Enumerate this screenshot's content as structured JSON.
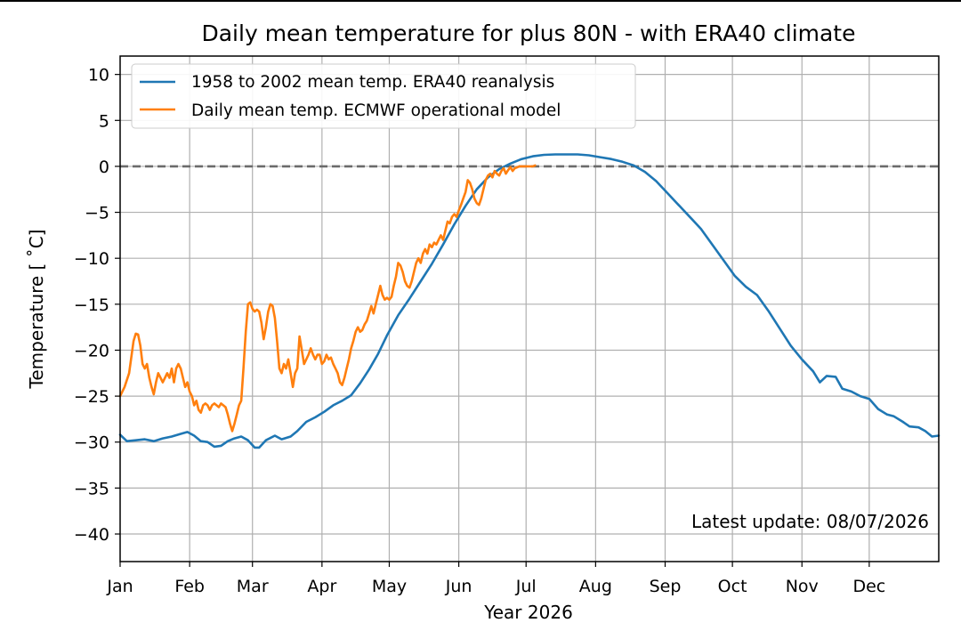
{
  "chart_data": {
    "type": "line",
    "title": "Daily mean temperature for plus 80N - with ERA40 climate",
    "xlabel": "Year 2026",
    "ylabel": "Temperature [$^\\circ$C]",
    "ylabel_display": "Temperature [ ˚C]",
    "x_tick_labels": [
      "Jan",
      "Feb",
      "Mar",
      "Apr",
      "May",
      "Jun",
      "Jul",
      "Aug",
      "Sep",
      "Oct",
      "Nov",
      "Dec"
    ],
    "x_ticks_day_of_year": [
      1,
      32,
      60,
      91,
      121,
      152,
      182,
      213,
      244,
      274,
      305,
      335
    ],
    "y_tick_labels": [
      "10",
      "5",
      "0",
      "−5",
      "−10",
      "−15",
      "−20",
      "−25",
      "−30",
      "−35",
      "−40"
    ],
    "y_ticks": [
      10,
      5,
      0,
      -5,
      -10,
      -15,
      -20,
      -25,
      -30,
      -35,
      -40
    ],
    "xlim": [
      1,
      366
    ],
    "ylim": [
      -43,
      12
    ],
    "grid": true,
    "legend_position": "upper-left",
    "reference_line": {
      "y": 0,
      "style": "dashed",
      "color": "#6b6b6b"
    },
    "annotation": "Latest update: 08/07/2026",
    "series": [
      {
        "name": "1958 to 2002 mean temp. ERA40 reanalysis",
        "color": "#1f77b4",
        "points": [
          [
            1,
            -29.2
          ],
          [
            4,
            -29.9
          ],
          [
            8,
            -29.8
          ],
          [
            12,
            -29.7
          ],
          [
            16,
            -29.9
          ],
          [
            20,
            -29.6
          ],
          [
            24,
            -29.4
          ],
          [
            28,
            -29.1
          ],
          [
            31,
            -28.9
          ],
          [
            34,
            -29.3
          ],
          [
            37,
            -29.9
          ],
          [
            40,
            -30.0
          ],
          [
            43,
            -30.5
          ],
          [
            46,
            -30.4
          ],
          [
            49,
            -29.9
          ],
          [
            52,
            -29.6
          ],
          [
            55,
            -29.4
          ],
          [
            58,
            -29.8
          ],
          [
            61,
            -30.6
          ],
          [
            63,
            -30.6
          ],
          [
            66,
            -29.8
          ],
          [
            70,
            -29.3
          ],
          [
            73,
            -29.7
          ],
          [
            77,
            -29.4
          ],
          [
            80,
            -28.8
          ],
          [
            84,
            -27.8
          ],
          [
            88,
            -27.3
          ],
          [
            92,
            -26.7
          ],
          [
            96,
            -26.0
          ],
          [
            100,
            -25.5
          ],
          [
            104,
            -24.9
          ],
          [
            108,
            -23.6
          ],
          [
            112,
            -22.1
          ],
          [
            116,
            -20.4
          ],
          [
            120,
            -18.4
          ],
          [
            125,
            -16.2
          ],
          [
            130,
            -14.4
          ],
          [
            135,
            -12.5
          ],
          [
            140,
            -10.6
          ],
          [
            145,
            -8.5
          ],
          [
            150,
            -6.3
          ],
          [
            155,
            -4.3
          ],
          [
            160,
            -2.5
          ],
          [
            165,
            -1.2
          ],
          [
            170,
            -0.3
          ],
          [
            175,
            0.3
          ],
          [
            180,
            0.8
          ],
          [
            185,
            1.1
          ],
          [
            190,
            1.25
          ],
          [
            195,
            1.3
          ],
          [
            200,
            1.3
          ],
          [
            205,
            1.3
          ],
          [
            210,
            1.2
          ],
          [
            215,
            1.0
          ],
          [
            220,
            0.8
          ],
          [
            225,
            0.5
          ],
          [
            230,
            0.1
          ],
          [
            235,
            -0.6
          ],
          [
            240,
            -1.6
          ],
          [
            245,
            -2.9
          ],
          [
            250,
            -4.2
          ],
          [
            255,
            -5.5
          ],
          [
            260,
            -6.8
          ],
          [
            265,
            -8.5
          ],
          [
            270,
            -10.2
          ],
          [
            275,
            -11.9
          ],
          [
            280,
            -13.1
          ],
          [
            285,
            -14.0
          ],
          [
            290,
            -15.7
          ],
          [
            295,
            -17.6
          ],
          [
            300,
            -19.5
          ],
          [
            305,
            -21.0
          ],
          [
            310,
            -22.3
          ],
          [
            313,
            -23.5
          ],
          [
            316,
            -22.8
          ],
          [
            320,
            -22.9
          ],
          [
            323,
            -24.2
          ],
          [
            327,
            -24.5
          ],
          [
            331,
            -25.0
          ],
          [
            335,
            -25.3
          ],
          [
            339,
            -26.4
          ],
          [
            343,
            -27.0
          ],
          [
            346,
            -27.2
          ],
          [
            350,
            -27.8
          ],
          [
            353,
            -28.3
          ],
          [
            357,
            -28.4
          ],
          [
            360,
            -28.8
          ],
          [
            363,
            -29.4
          ],
          [
            366,
            -29.3
          ]
        ]
      },
      {
        "name": "Daily mean temp. ECMWF operational model",
        "color": "#ff7f0e",
        "points": [
          [
            1,
            -25.0
          ],
          [
            3,
            -24.0
          ],
          [
            5,
            -22.5
          ],
          [
            7,
            -19.0
          ],
          [
            8,
            -18.2
          ],
          [
            9,
            -18.3
          ],
          [
            10,
            -19.5
          ],
          [
            11,
            -21.5
          ],
          [
            12,
            -22.0
          ],
          [
            13,
            -21.5
          ],
          [
            14,
            -23.0
          ],
          [
            15,
            -24.0
          ],
          [
            16,
            -24.8
          ],
          [
            17,
            -23.5
          ],
          [
            18,
            -22.5
          ],
          [
            19,
            -23.0
          ],
          [
            20,
            -23.5
          ],
          [
            21,
            -23.0
          ],
          [
            22,
            -22.5
          ],
          [
            23,
            -23.0
          ],
          [
            24,
            -22.0
          ],
          [
            25,
            -23.5
          ],
          [
            26,
            -22.0
          ],
          [
            27,
            -21.5
          ],
          [
            28,
            -22.0
          ],
          [
            29,
            -23.0
          ],
          [
            30,
            -24.0
          ],
          [
            31,
            -23.5
          ],
          [
            32,
            -24.5
          ],
          [
            33,
            -25.0
          ],
          [
            34,
            -26.0
          ],
          [
            35,
            -25.5
          ],
          [
            36,
            -26.5
          ],
          [
            37,
            -26.8
          ],
          [
            38,
            -26.0
          ],
          [
            39,
            -25.8
          ],
          [
            40,
            -26.0
          ],
          [
            41,
            -26.5
          ],
          [
            42,
            -26.0
          ],
          [
            43,
            -25.8
          ],
          [
            44,
            -26.0
          ],
          [
            45,
            -26.2
          ],
          [
            46,
            -25.8
          ],
          [
            47,
            -26.0
          ],
          [
            48,
            -26.2
          ],
          [
            49,
            -27.0
          ],
          [
            50,
            -28.0
          ],
          [
            51,
            -28.8
          ],
          [
            52,
            -28.0
          ],
          [
            53,
            -27.0
          ],
          [
            54,
            -26.0
          ],
          [
            55,
            -25.5
          ],
          [
            56,
            -22.0
          ],
          [
            57,
            -18.0
          ],
          [
            58,
            -15.0
          ],
          [
            59,
            -14.8
          ],
          [
            60,
            -15.5
          ],
          [
            61,
            -15.8
          ],
          [
            62,
            -15.6
          ],
          [
            63,
            -15.8
          ],
          [
            64,
            -17.0
          ],
          [
            65,
            -18.8
          ],
          [
            66,
            -17.5
          ],
          [
            67,
            -15.8
          ],
          [
            68,
            -15.0
          ],
          [
            69,
            -15.2
          ],
          [
            70,
            -16.5
          ],
          [
            71,
            -19.0
          ],
          [
            72,
            -22.0
          ],
          [
            73,
            -22.5
          ],
          [
            74,
            -21.5
          ],
          [
            75,
            -22.0
          ],
          [
            76,
            -21.0
          ],
          [
            77,
            -22.5
          ],
          [
            78,
            -24.0
          ],
          [
            79,
            -22.5
          ],
          [
            80,
            -22.0
          ],
          [
            81,
            -18.5
          ],
          [
            82,
            -20.0
          ],
          [
            83,
            -21.5
          ],
          [
            84,
            -21.0
          ],
          [
            85,
            -20.5
          ],
          [
            86,
            -19.8
          ],
          [
            87,
            -20.5
          ],
          [
            88,
            -21.0
          ],
          [
            89,
            -20.5
          ],
          [
            90,
            -20.5
          ],
          [
            91,
            -21.5
          ],
          [
            92,
            -21.2
          ],
          [
            93,
            -20.5
          ],
          [
            94,
            -21.0
          ],
          [
            95,
            -20.8
          ],
          [
            96,
            -21.5
          ],
          [
            97,
            -22.0
          ],
          [
            98,
            -22.5
          ],
          [
            99,
            -23.5
          ],
          [
            100,
            -23.8
          ],
          [
            101,
            -23.0
          ],
          [
            102,
            -22.0
          ],
          [
            103,
            -21.0
          ],
          [
            104,
            -19.8
          ],
          [
            105,
            -19.0
          ],
          [
            106,
            -18.0
          ],
          [
            107,
            -17.5
          ],
          [
            108,
            -18.0
          ],
          [
            109,
            -17.8
          ],
          [
            110,
            -17.2
          ],
          [
            111,
            -16.8
          ],
          [
            112,
            -16.0
          ],
          [
            113,
            -15.2
          ],
          [
            114,
            -16.0
          ],
          [
            115,
            -15.0
          ],
          [
            116,
            -14.0
          ],
          [
            117,
            -13.0
          ],
          [
            118,
            -14.0
          ],
          [
            119,
            -14.5
          ],
          [
            120,
            -14.3
          ],
          [
            121,
            -14.5
          ],
          [
            122,
            -14.2
          ],
          [
            123,
            -13.0
          ],
          [
            124,
            -12.0
          ],
          [
            125,
            -10.5
          ],
          [
            126,
            -10.8
          ],
          [
            127,
            -11.5
          ],
          [
            128,
            -12.5
          ],
          [
            129,
            -13.0
          ],
          [
            130,
            -13.2
          ],
          [
            131,
            -12.5
          ],
          [
            132,
            -11.5
          ],
          [
            133,
            -10.5
          ],
          [
            134,
            -10.0
          ],
          [
            135,
            -10.5
          ],
          [
            136,
            -9.5
          ],
          [
            137,
            -9.0
          ],
          [
            138,
            -9.5
          ],
          [
            139,
            -8.5
          ],
          [
            140,
            -8.8
          ],
          [
            141,
            -8.3
          ],
          [
            142,
            -8.5
          ],
          [
            143,
            -8.0
          ],
          [
            144,
            -7.5
          ],
          [
            145,
            -8.0
          ],
          [
            146,
            -7.0
          ],
          [
            147,
            -6.0
          ],
          [
            148,
            -6.2
          ],
          [
            149,
            -5.5
          ],
          [
            150,
            -5.2
          ],
          [
            151,
            -5.5
          ],
          [
            152,
            -4.8
          ],
          [
            153,
            -4.2
          ],
          [
            154,
            -3.5
          ],
          [
            155,
            -2.8
          ],
          [
            156,
            -1.5
          ],
          [
            157,
            -1.8
          ],
          [
            158,
            -2.5
          ],
          [
            159,
            -3.5
          ],
          [
            160,
            -4.0
          ],
          [
            161,
            -4.2
          ],
          [
            162,
            -3.5
          ],
          [
            163,
            -2.5
          ],
          [
            164,
            -1.5
          ],
          [
            165,
            -1.0
          ],
          [
            166,
            -0.8
          ],
          [
            167,
            -1.2
          ],
          [
            168,
            -0.5
          ],
          [
            169,
            -0.8
          ],
          [
            170,
            -1.0
          ],
          [
            171,
            -0.5
          ],
          [
            172,
            -0.2
          ],
          [
            173,
            -0.8
          ],
          [
            174,
            -0.4
          ],
          [
            175,
            -0.1
          ],
          [
            176,
            -0.5
          ],
          [
            177,
            -0.2
          ],
          [
            178,
            -0.1
          ],
          [
            179,
            0.0
          ],
          [
            180,
            0.0
          ],
          [
            181,
            0.0
          ],
          [
            182,
            0.0
          ],
          [
            183,
            0.0
          ],
          [
            184,
            0.0
          ],
          [
            185,
            0.0
          ],
          [
            186,
            0.1
          ]
        ]
      }
    ]
  }
}
